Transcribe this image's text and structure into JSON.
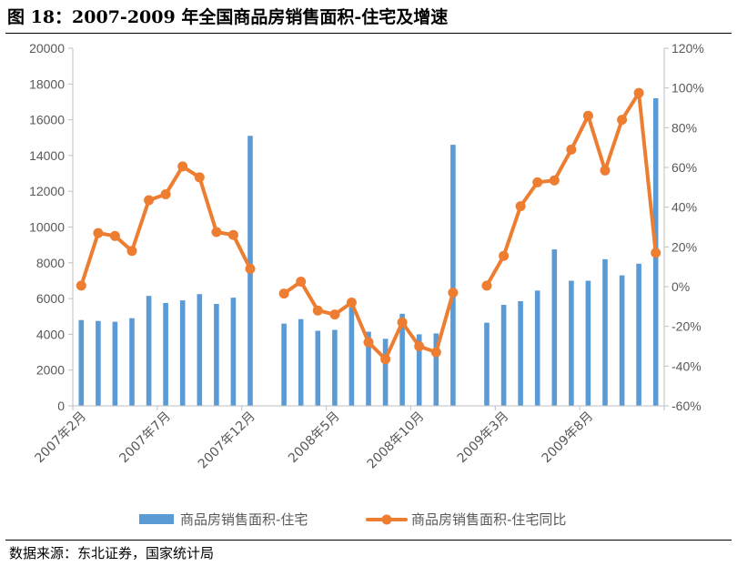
{
  "figure": {
    "title": "图 18：2007-2009 年全国商品房销售面积-住宅及增速",
    "source": "数据来源：东北证券，国家统计局"
  },
  "colors": {
    "bar": "#5B9BD5",
    "line": "#ED7D31",
    "axis": "#BFBFBF",
    "text": "#595959"
  },
  "chart_data": {
    "type": "bar+line",
    "title": "",
    "legend_position": "bottom",
    "grid": false,
    "y_left": {
      "min": 0,
      "max": 20000,
      "step": 2000,
      "ticks": [
        "0",
        "2000",
        "4000",
        "6000",
        "8000",
        "10000",
        "12000",
        "14000",
        "16000",
        "18000",
        "20000"
      ]
    },
    "y_right": {
      "min": -60,
      "max": 120,
      "step": 20,
      "ticks": [
        "-60%",
        "-40%",
        "-20%",
        "0%",
        "20%",
        "40%",
        "60%",
        "80%",
        "100%",
        "120%"
      ]
    },
    "x_tick_labels": [
      {
        "index": 0,
        "label": "2007年2月"
      },
      {
        "index": 5,
        "label": "2007年7月"
      },
      {
        "index": 10,
        "label": "2007年12月"
      },
      {
        "index": 15,
        "label": "2008年5月"
      },
      {
        "index": 20,
        "label": "2008年10月"
      },
      {
        "index": 25,
        "label": "2009年3月"
      },
      {
        "index": 30,
        "label": "2009年8月"
      }
    ],
    "categories": [
      "2007年2月",
      "2007年3月",
      "2007年4月",
      "2007年5月",
      "2007年6月",
      "2007年7月",
      "2007年8月",
      "2007年9月",
      "2007年10月",
      "2007年11月",
      "2007年12月",
      "2008年1月",
      "2008年2月",
      "2008年3月",
      "2008年4月",
      "2008年5月",
      "2008年6月",
      "2008年7月",
      "2008年8月",
      "2008年9月",
      "2008年10月",
      "2008年11月",
      "2008年12月",
      "2009年1月",
      "2009年2月",
      "2009年3月",
      "2009年4月",
      "2009年5月",
      "2009年6月",
      "2009年7月",
      "2009年8月",
      "2009年9月",
      "2009年10月",
      "2009年11月",
      "2009年12月"
    ],
    "series": [
      {
        "name": "商品房销售面积-住宅",
        "kind": "bar",
        "axis": "left",
        "values": [
          4800,
          4750,
          4700,
          4900,
          6150,
          5750,
          5900,
          6250,
          5700,
          6050,
          15100,
          null,
          4600,
          4850,
          4200,
          4250,
          5500,
          4150,
          3750,
          5150,
          4000,
          4050,
          14600,
          null,
          4650,
          5650,
          5850,
          6450,
          8750,
          7000,
          7000,
          8200,
          7300,
          7950,
          17200
        ]
      },
      {
        "name": "商品房销售面积-住宅同比",
        "kind": "line",
        "axis": "right",
        "values": [
          0.5,
          27,
          25.5,
          18,
          43.5,
          46.5,
          60.5,
          55,
          27.5,
          26,
          9,
          null,
          -3.5,
          2.5,
          -12,
          -14,
          -8,
          -28,
          -36.5,
          -18,
          -30,
          -33,
          -3,
          null,
          0.5,
          15.5,
          40.5,
          52.5,
          53.5,
          69,
          86,
          58.5,
          84,
          97.5,
          17
        ]
      }
    ]
  }
}
